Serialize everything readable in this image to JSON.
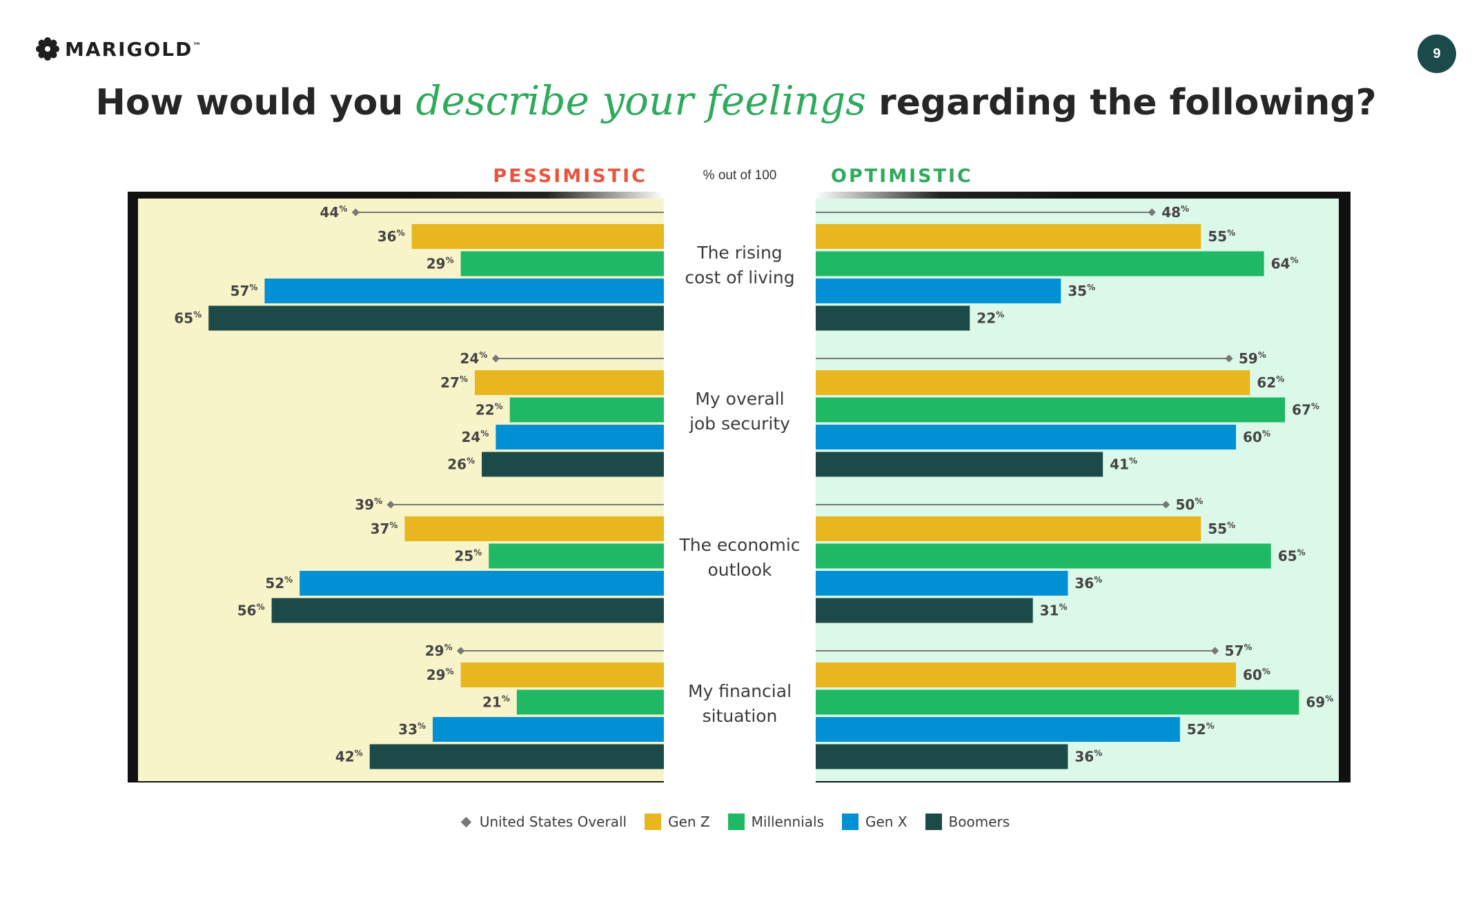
{
  "brand": {
    "name": "MARIGOLD",
    "trademark": "™"
  },
  "page_number": "9",
  "title": {
    "before": "How would you",
    "accent": "describe your feelings",
    "after": "regarding the following?"
  },
  "colors": {
    "gen_z": "#e8b61e",
    "millennials": "#1fb865",
    "gen_x": "#0290d4",
    "boomers": "#1b4a48",
    "overall": "#777777",
    "pessimistic": "#e8553f",
    "optimistic": "#2eaa5c",
    "pess_bg": "#f8f4c9",
    "opt_bg": "#dcf8e8",
    "frame": "#111111"
  },
  "chart_data": {
    "type": "bar",
    "orientation": "horizontal-diverging",
    "left_header": "PESSIMISTIC",
    "right_header": "OPTIMISTIC",
    "center_note": "% out of 100",
    "value_suffix": "%",
    "xlim": [
      0,
      100
    ],
    "categories": [
      "The rising cost of living",
      "My overall job security",
      "The economic outlook",
      "My financial situation"
    ],
    "category_lines": [
      [
        "The rising",
        "cost of living"
      ],
      [
        "My overall",
        "job security"
      ],
      [
        "The economic",
        "outlook"
      ],
      [
        "My financial",
        "situation"
      ]
    ],
    "overall": {
      "name": "United States Overall",
      "pessimistic": [
        44,
        24,
        39,
        29
      ],
      "optimistic": [
        48,
        59,
        50,
        57
      ]
    },
    "series": [
      {
        "name": "Gen Z",
        "color_key": "gen_z",
        "pessimistic": [
          36,
          27,
          37,
          29
        ],
        "optimistic": [
          55,
          62,
          55,
          60
        ]
      },
      {
        "name": "Millennials",
        "color_key": "millennials",
        "pessimistic": [
          29,
          22,
          25,
          21
        ],
        "optimistic": [
          64,
          67,
          65,
          69
        ]
      },
      {
        "name": "Gen X",
        "color_key": "gen_x",
        "pessimistic": [
          57,
          24,
          52,
          33
        ],
        "optimistic": [
          35,
          60,
          36,
          52
        ]
      },
      {
        "name": "Boomers",
        "color_key": "boomers",
        "pessimistic": [
          65,
          26,
          56,
          42
        ],
        "optimistic": [
          22,
          41,
          31,
          36
        ]
      }
    ]
  },
  "legend": [
    {
      "label": "United States Overall",
      "marker": "diamond",
      "color_key": "overall"
    },
    {
      "label": "Gen Z",
      "marker": "square",
      "color_key": "gen_z"
    },
    {
      "label": "Millennials",
      "marker": "square",
      "color_key": "millennials"
    },
    {
      "label": "Gen X",
      "marker": "square",
      "color_key": "gen_x"
    },
    {
      "label": "Boomers",
      "marker": "square",
      "color_key": "boomers"
    }
  ]
}
